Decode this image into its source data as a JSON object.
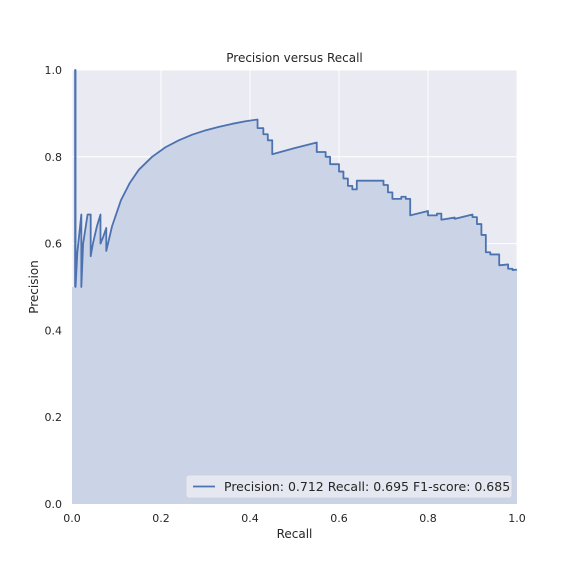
{
  "chart_data": {
    "type": "area",
    "title": "Precision versus Recall",
    "xlabel": "Recall",
    "ylabel": "Precision",
    "xlim": [
      0,
      1
    ],
    "ylim": [
      0,
      1
    ],
    "xticks": [
      "0.0",
      "0.2",
      "0.4",
      "0.6",
      "0.8",
      "1.0"
    ],
    "yticks": [
      "0.0",
      "0.2",
      "0.4",
      "0.6",
      "0.8",
      "1.0"
    ],
    "grid": true,
    "legend_position": "bottom-right",
    "colors": {
      "line": "#4c72b0",
      "fill": "#cbd3e6",
      "axes_background": "#eaeaf2",
      "grid": "#ffffff"
    },
    "series": [
      {
        "name": "Precision: 0.712  Recall: 0.695  F1-score: 0.685",
        "x": [
          0.007,
          0.007,
          0.008,
          0.008,
          0.012,
          0.021,
          0.021,
          0.025,
          0.035,
          0.042,
          0.042,
          0.047,
          0.056,
          0.064,
          0.064,
          0.07,
          0.077,
          0.077,
          0.09,
          0.11,
          0.13,
          0.15,
          0.18,
          0.21,
          0.24,
          0.27,
          0.3,
          0.33,
          0.36,
          0.39,
          0.417,
          0.417,
          0.43,
          0.43,
          0.44,
          0.44,
          0.45,
          0.45,
          0.5,
          0.55,
          0.55,
          0.57,
          0.57,
          0.58,
          0.58,
          0.6,
          0.6,
          0.61,
          0.61,
          0.62,
          0.62,
          0.63,
          0.63,
          0.64,
          0.64,
          0.7,
          0.7,
          0.71,
          0.71,
          0.72,
          0.72,
          0.74,
          0.74,
          0.75,
          0.75,
          0.76,
          0.76,
          0.8,
          0.8,
          0.82,
          0.82,
          0.83,
          0.83,
          0.86,
          0.86,
          0.9,
          0.9,
          0.91,
          0.91,
          0.92,
          0.92,
          0.93,
          0.93,
          0.94,
          0.94,
          0.96,
          0.96,
          0.98,
          0.98,
          0.99,
          0.99,
          1.0
        ],
        "y": [
          0.5,
          1.0,
          1.0,
          0.5,
          0.58,
          0.667,
          0.5,
          0.6,
          0.667,
          0.667,
          0.571,
          0.6,
          0.64,
          0.667,
          0.6,
          0.615,
          0.636,
          0.583,
          0.64,
          0.7,
          0.74,
          0.77,
          0.8,
          0.822,
          0.838,
          0.851,
          0.861,
          0.869,
          0.876,
          0.882,
          0.886,
          0.866,
          0.866,
          0.852,
          0.852,
          0.838,
          0.838,
          0.806,
          0.82,
          0.833,
          0.811,
          0.811,
          0.8,
          0.8,
          0.783,
          0.783,
          0.766,
          0.766,
          0.75,
          0.75,
          0.733,
          0.733,
          0.725,
          0.725,
          0.745,
          0.745,
          0.735,
          0.735,
          0.718,
          0.718,
          0.703,
          0.703,
          0.708,
          0.708,
          0.703,
          0.703,
          0.665,
          0.675,
          0.665,
          0.665,
          0.669,
          0.669,
          0.655,
          0.66,
          0.657,
          0.667,
          0.661,
          0.661,
          0.645,
          0.645,
          0.62,
          0.62,
          0.58,
          0.58,
          0.575,
          0.575,
          0.55,
          0.552,
          0.542,
          0.542,
          0.539,
          0.54
        ]
      }
    ]
  }
}
